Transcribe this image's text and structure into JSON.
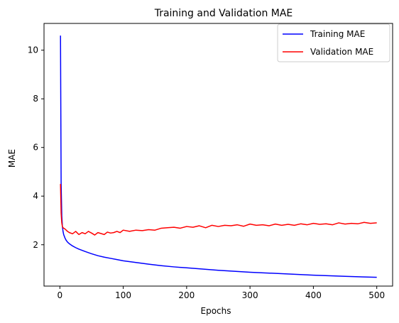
{
  "chart_data": {
    "type": "line",
    "title": "Training and Validation MAE",
    "xlabel": "Epochs",
    "ylabel": "MAE",
    "xlim": [
      -25,
      525
    ],
    "ylim": [
      0.3,
      11.1
    ],
    "xticks": [
      0,
      100,
      200,
      300,
      400,
      500
    ],
    "yticks": [
      2,
      4,
      6,
      8,
      10
    ],
    "grid": false,
    "legend_position": "top-right",
    "series": [
      {
        "name": "Training MAE",
        "color": "#0000ff",
        "x": [
          1,
          2,
          3,
          4,
          5,
          6,
          8,
          10,
          12,
          15,
          20,
          25,
          30,
          40,
          50,
          60,
          70,
          80,
          90,
          100,
          120,
          140,
          160,
          180,
          200,
          250,
          300,
          350,
          400,
          450,
          500
        ],
        "y": [
          10.6,
          4.5,
          3.2,
          2.75,
          2.55,
          2.42,
          2.28,
          2.18,
          2.11,
          2.04,
          1.95,
          1.88,
          1.82,
          1.72,
          1.63,
          1.55,
          1.49,
          1.44,
          1.39,
          1.34,
          1.27,
          1.2,
          1.14,
          1.09,
          1.05,
          0.95,
          0.87,
          0.81,
          0.75,
          0.7,
          0.66
        ]
      },
      {
        "name": "Validation MAE",
        "color": "#ff0000",
        "x": [
          1,
          2,
          3,
          4,
          5,
          6,
          8,
          10,
          12,
          15,
          20,
          25,
          30,
          35,
          40,
          45,
          50,
          55,
          60,
          65,
          70,
          75,
          80,
          85,
          90,
          95,
          100,
          110,
          120,
          130,
          140,
          150,
          160,
          170,
          180,
          190,
          200,
          210,
          220,
          230,
          240,
          250,
          260,
          270,
          280,
          290,
          300,
          310,
          320,
          330,
          340,
          350,
          360,
          370,
          380,
          390,
          400,
          410,
          420,
          430,
          440,
          450,
          460,
          470,
          480,
          490,
          500
        ],
        "y": [
          4.5,
          3.3,
          2.9,
          2.75,
          2.7,
          2.68,
          2.65,
          2.6,
          2.55,
          2.5,
          2.45,
          2.55,
          2.42,
          2.5,
          2.45,
          2.55,
          2.48,
          2.4,
          2.5,
          2.46,
          2.42,
          2.52,
          2.48,
          2.5,
          2.55,
          2.5,
          2.6,
          2.55,
          2.6,
          2.58,
          2.62,
          2.6,
          2.68,
          2.7,
          2.72,
          2.68,
          2.75,
          2.72,
          2.78,
          2.7,
          2.8,
          2.75,
          2.8,
          2.78,
          2.82,
          2.76,
          2.85,
          2.8,
          2.82,
          2.78,
          2.85,
          2.8,
          2.84,
          2.8,
          2.86,
          2.82,
          2.88,
          2.84,
          2.86,
          2.82,
          2.9,
          2.85,
          2.88,
          2.86,
          2.92,
          2.88,
          2.9
        ]
      }
    ]
  }
}
